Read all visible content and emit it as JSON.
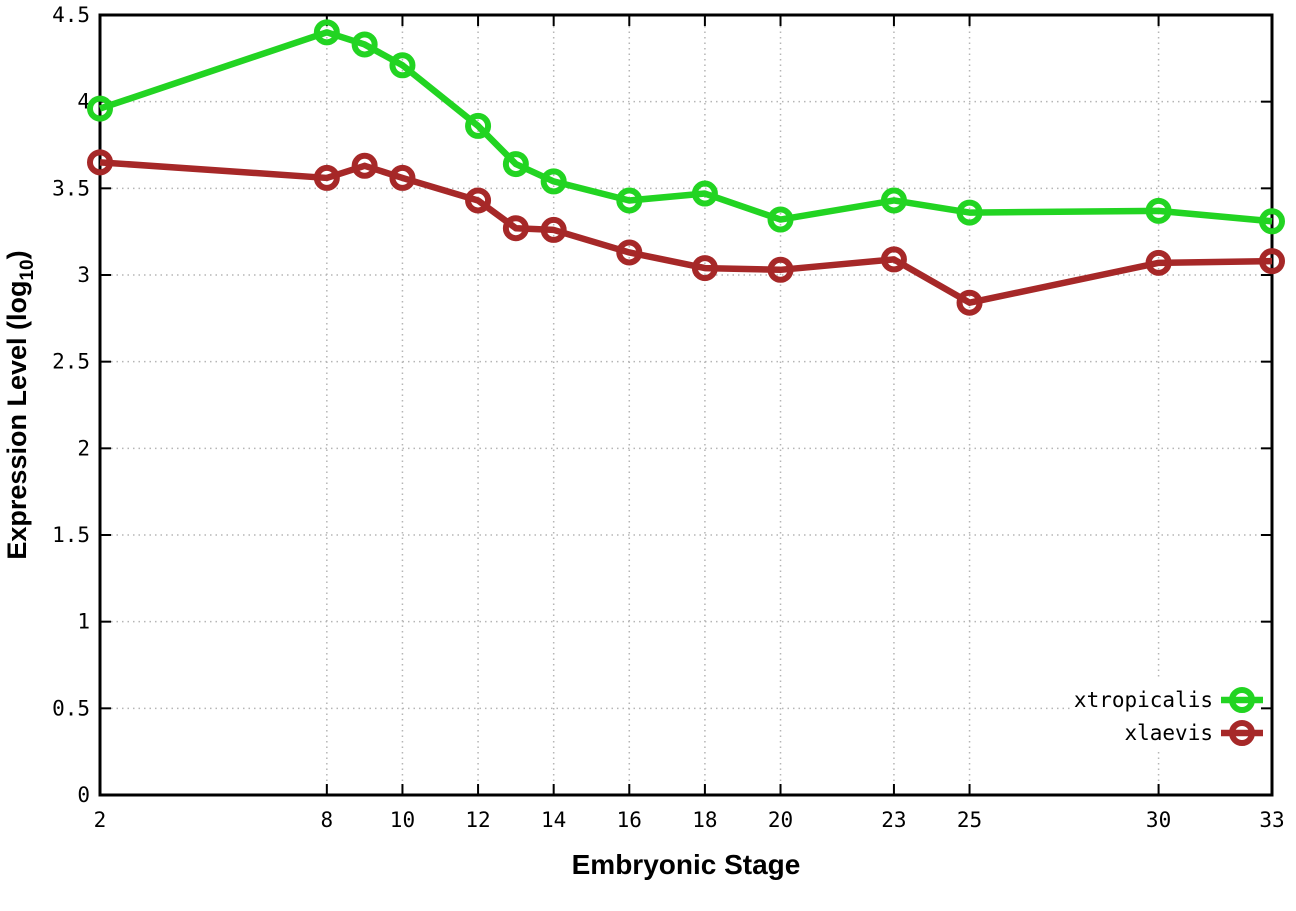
{
  "chart_data": {
    "type": "line",
    "title": "",
    "xlabel": "Embryonic Stage",
    "ylabel": "Expression Level (log10)",
    "ylabel_parts": {
      "main": "Expression Level (log",
      "sub": "10",
      "end": ")"
    },
    "x": [
      2,
      8,
      9,
      10,
      12,
      13,
      14,
      16,
      18,
      20,
      23,
      25,
      30,
      33
    ],
    "series": [
      {
        "name": "xtropicalis",
        "color": "#22d422",
        "values": [
          3.96,
          4.4,
          4.33,
          4.21,
          3.86,
          3.64,
          3.54,
          3.43,
          3.47,
          3.32,
          3.43,
          3.36,
          3.37,
          3.31
        ]
      },
      {
        "name": "xlaevis",
        "color": "#a62828",
        "values": [
          3.65,
          3.56,
          3.63,
          3.56,
          3.43,
          3.27,
          3.26,
          3.13,
          3.04,
          3.03,
          3.09,
          2.84,
          3.07,
          3.08
        ]
      }
    ],
    "xlim": [
      2,
      33
    ],
    "ylim": [
      0,
      4.5
    ],
    "xticks": [
      2,
      8,
      10,
      12,
      14,
      16,
      18,
      20,
      23,
      25,
      30,
      33
    ],
    "xtick_labels": [
      "2",
      "8",
      "10",
      "12",
      "14",
      "16",
      "18",
      "20",
      "23",
      "25",
      "30",
      "33"
    ],
    "yticks": [
      0,
      0.5,
      1,
      1.5,
      2,
      2.5,
      3,
      3.5,
      4,
      4.5
    ],
    "ytick_labels": [
      "0",
      "0.5",
      "1",
      "1.5",
      "2",
      "2.5",
      "3",
      "3.5",
      "4",
      "4.5"
    ],
    "grid": true,
    "legend_position": "bottom-right",
    "legend_entries": [
      "xtropicalis",
      "xlaevis"
    ]
  },
  "colors": {
    "background": "#ffffff",
    "axis": "#000000",
    "grid": "#b5b5b5",
    "series_green": "#22d422",
    "series_red": "#a62828"
  }
}
